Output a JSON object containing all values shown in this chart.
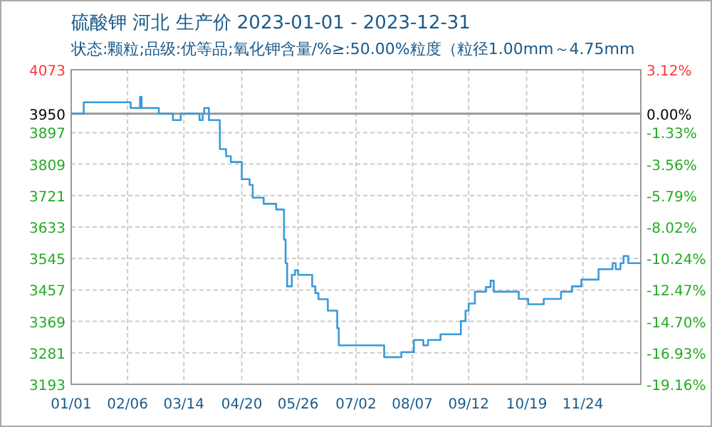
{
  "chart_data": {
    "type": "step",
    "title": "硫酸钾 河北 生产价 2023-01-01 - 2023-12-31",
    "subtitle": "状态:颗粒;品级:优等品;氧化钾含量/%≥:50.00%粒度（粒径1.00mm～4.75mm",
    "series": [
      {
        "color": "#3a9ad9",
        "x": [
          "2023-01-01",
          "2023-01-09",
          "2023-02-08",
          "2023-02-14",
          "2023-02-15",
          "2023-02-26",
          "2023-03-07",
          "2023-03-12",
          "2023-03-24",
          "2023-03-26",
          "2023-03-27",
          "2023-03-30",
          "2023-04-06",
          "2023-04-10",
          "2023-04-13",
          "2023-04-20",
          "2023-04-25",
          "2023-04-27",
          "2023-05-04",
          "2023-05-12",
          "2023-05-17",
          "2023-05-18",
          "2023-05-19",
          "2023-05-22",
          "2023-05-24",
          "2023-05-26",
          "2023-06-04",
          "2023-06-06",
          "2023-06-08",
          "2023-06-14",
          "2023-06-20",
          "2023-06-21",
          "2023-07-20",
          "2023-07-31",
          "2023-08-08",
          "2023-08-14",
          "2023-08-17",
          "2023-08-25",
          "2023-09-07",
          "2023-09-10",
          "2023-09-12",
          "2023-09-16",
          "2023-09-23",
          "2023-09-26",
          "2023-09-28",
          "2023-10-14",
          "2023-10-20",
          "2023-10-30",
          "2023-11-10",
          "2023-11-17",
          "2023-11-23",
          "2023-12-04",
          "2023-12-13",
          "2023-12-15",
          "2023-12-18",
          "2023-12-20",
          "2023-12-23",
          "2023-12-31"
        ],
        "values": [
          3950,
          3982,
          3966,
          3997,
          3966,
          3950,
          3932,
          3950,
          3932,
          3950,
          3966,
          3932,
          3851,
          3831,
          3815,
          3767,
          3751,
          3715,
          3698,
          3682,
          3598,
          3532,
          3467,
          3499,
          3512,
          3499,
          3467,
          3448,
          3431,
          3399,
          3350,
          3302,
          3269,
          3283,
          3317,
          3302,
          3317,
          3333,
          3370,
          3399,
          3419,
          3452,
          3465,
          3483,
          3452,
          3432,
          3417,
          3432,
          3452,
          3467,
          3486,
          3515,
          3532,
          3515,
          3532,
          3552,
          3532,
          3532
        ]
      }
    ],
    "xlim": [
      "2023-01-01",
      "2023-12-31"
    ],
    "xticks": [
      {
        "value": "2023-01-01",
        "label": "01/01"
      },
      {
        "value": "2023-02-06",
        "label": "02/06"
      },
      {
        "value": "2023-03-14",
        "label": "03/14"
      },
      {
        "value": "2023-04-20",
        "label": "04/20"
      },
      {
        "value": "2023-05-26",
        "label": "05/26"
      },
      {
        "value": "2023-07-02",
        "label": "07/02"
      },
      {
        "value": "2023-08-07",
        "label": "08/07"
      },
      {
        "value": "2023-09-12",
        "label": "09/12"
      },
      {
        "value": "2023-10-19",
        "label": "10/19"
      },
      {
        "value": "2023-11-24",
        "label": "11/24"
      }
    ],
    "ylim": [
      3193,
      4073
    ],
    "yticks": [
      4073,
      3950,
      3897,
      3809,
      3721,
      3633,
      3545,
      3457,
      3369,
      3281,
      3193
    ],
    "y2lim": [
      -19.16,
      3.12
    ],
    "y2ticks": [
      {
        "value": 3.12,
        "label": "3.12%"
      },
      {
        "value": 0,
        "label": "0.00%"
      },
      {
        "value": -1.33,
        "label": "-1.33%"
      },
      {
        "value": -3.56,
        "label": "-3.56%"
      },
      {
        "value": -5.79,
        "label": "-5.79%"
      },
      {
        "value": -8.02,
        "label": "-8.02%"
      },
      {
        "value": -10.24,
        "label": "-10.24%"
      },
      {
        "value": -12.47,
        "label": "-12.47%"
      },
      {
        "value": -14.7,
        "label": "-14.70%"
      },
      {
        "value": -16.93,
        "label": "-16.93%"
      },
      {
        "value": -19.16,
        "label": "-19.16%"
      }
    ],
    "ref_lines": [
      {
        "axis": "y",
        "value": 3950,
        "color": "#999999"
      }
    ],
    "grid": true
  }
}
